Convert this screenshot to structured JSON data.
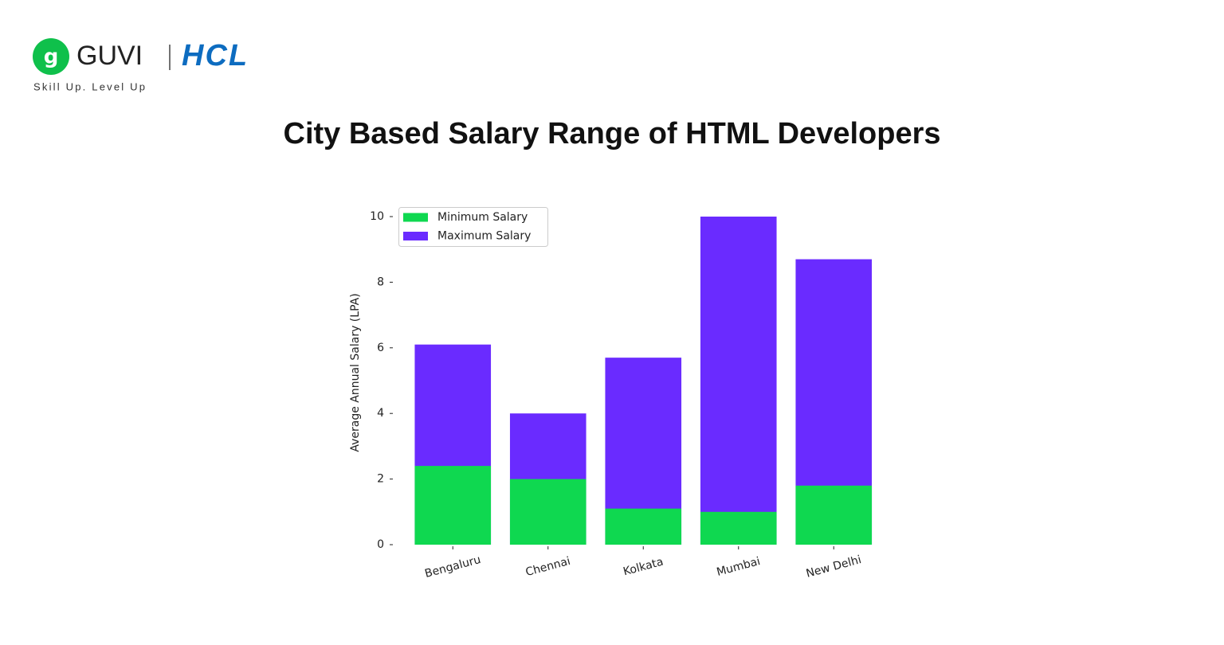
{
  "header": {
    "brand": "GUVI",
    "partner": "HCL",
    "tagline": "Skill Up. Level Up"
  },
  "chart_data": {
    "type": "bar",
    "title": "City Based Salary Range of HTML Developers",
    "y_label": "Average Annual Salary (LPA)",
    "categories": [
      "Bengaluru",
      "Chennai",
      "Kolkata",
      "Mumbai",
      "New Delhi"
    ],
    "series": [
      {
        "name": "Minimum Salary",
        "color": "#0fd850",
        "values": [
          2.4,
          2.0,
          1.1,
          1.0,
          1.8
        ]
      },
      {
        "name": "Maximum Salary",
        "color": "#6a2bff",
        "values": [
          6.1,
          4.0,
          5.7,
          10.0,
          8.7
        ]
      }
    ],
    "ylim": [
      0,
      10.5
    ],
    "yticks": [
      0,
      2,
      4,
      6,
      8,
      10
    ],
    "grid": false,
    "legend": "upper left"
  }
}
